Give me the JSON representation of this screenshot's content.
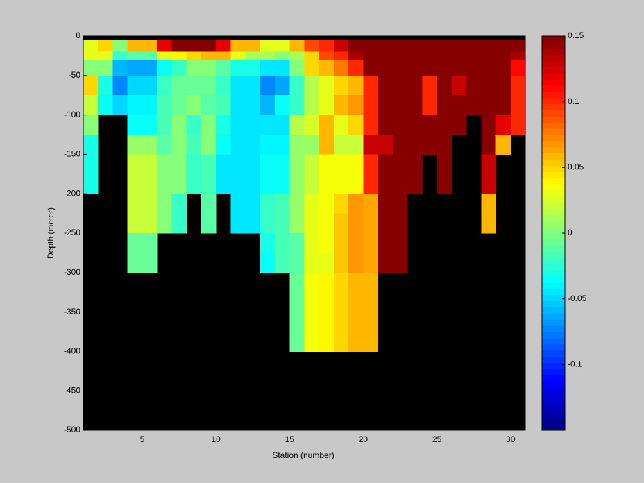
{
  "chart_data": {
    "type": "heatmap",
    "xlabel": "Station (number)",
    "ylabel": "Depth (meter)",
    "xbins": [
      1,
      2,
      3,
      4,
      5,
      6,
      7,
      8,
      9,
      10,
      11,
      12,
      13,
      14,
      15,
      16,
      17,
      18,
      19,
      20,
      21,
      22,
      23,
      24,
      25,
      26,
      27,
      28,
      29,
      30,
      31
    ],
    "ybins": [
      0,
      -5,
      -20,
      -30,
      -50,
      -75,
      -100,
      -125,
      -150,
      -175,
      -200,
      -225,
      -250,
      -275,
      -300,
      -325,
      -350,
      -375,
      -400
    ],
    "z": [
      [
        null,
        null,
        null,
        null,
        null,
        null,
        null,
        null,
        null,
        null,
        null,
        null,
        null,
        null,
        null,
        null,
        null,
        null,
        null,
        null,
        null,
        null,
        null,
        null,
        null,
        null,
        null,
        null,
        null,
        null
      ],
      [
        0.03,
        0.05,
        0,
        0.06,
        0.06,
        0.12,
        0.15,
        0.15,
        0.15,
        0.12,
        0.06,
        0.06,
        0.03,
        0.03,
        0.06,
        0.09,
        0.1,
        0.13,
        0.15,
        0.15,
        0.15,
        0.15,
        0.15,
        0.15,
        0.15,
        0.15,
        0.15,
        0.15,
        0.15,
        0.15
      ],
      [
        0.03,
        0.03,
        -0.02,
        -0.01,
        -0.01,
        0.03,
        0.04,
        0.05,
        0.06,
        0.06,
        0.03,
        0.01,
        0.01,
        0,
        0.01,
        0.05,
        0.09,
        0.1,
        0.14,
        0.15,
        0.15,
        0.15,
        0.15,
        0.15,
        0.15,
        0.15,
        0.15,
        0.15,
        0.15,
        0.14
      ],
      [
        0,
        0,
        -0.06,
        -0.065,
        -0.065,
        -0.035,
        -0.02,
        0,
        0,
        -0.01,
        -0.03,
        -0.03,
        -0.045,
        -0.045,
        0,
        0.05,
        0.06,
        0.075,
        0.1,
        0.15,
        0.15,
        0.15,
        0.15,
        0.15,
        0.15,
        0.15,
        0.15,
        0.15,
        0.15,
        0.11
      ],
      [
        0.05,
        -0.03,
        -0.075,
        -0.05,
        -0.05,
        -0.02,
        -0.005,
        -0.005,
        -0.005,
        -0.02,
        -0.045,
        -0.045,
        -0.075,
        -0.065,
        -0.02,
        0.015,
        0.03,
        0.05,
        0.06,
        0.1,
        0.15,
        0.15,
        0.15,
        0.1,
        0.15,
        0.13,
        0.15,
        0.15,
        0.15,
        0.1
      ],
      [
        0.02,
        -0.035,
        -0.05,
        -0.04,
        -0.04,
        -0.015,
        -0.005,
        0,
        -0.01,
        -0.015,
        -0.045,
        -0.045,
        -0.06,
        -0.035,
        -0.02,
        0.015,
        0.03,
        0.06,
        0.07,
        0.1,
        0.15,
        0.15,
        0.15,
        0.1,
        0.15,
        0.15,
        0.15,
        0.15,
        0.15,
        0.1
      ],
      [
        0,
        null,
        null,
        -0.035,
        -0.035,
        -0.015,
        0,
        -0.02,
        0,
        -0.03,
        -0.045,
        -0.045,
        -0.045,
        -0.045,
        0.015,
        0.025,
        0.06,
        0.03,
        0.05,
        0.1,
        0.15,
        0.15,
        0.15,
        0.15,
        0.15,
        0.15,
        null,
        0.15,
        0.12,
        0.1
      ],
      [
        -0.03,
        null,
        null,
        0.005,
        0.005,
        -0.01,
        0,
        -0.015,
        0,
        -0.035,
        -0.045,
        -0.045,
        -0.04,
        -0.04,
        0.005,
        0.005,
        0.06,
        0.02,
        0.02,
        0.13,
        0.13,
        0.15,
        0.15,
        0.15,
        0.15,
        null,
        null,
        0.15,
        0.06,
        null
      ],
      [
        -0.03,
        null,
        null,
        0.02,
        0.02,
        0,
        0,
        -0.02,
        -0.015,
        -0.045,
        -0.045,
        -0.045,
        -0.035,
        -0.035,
        0.005,
        0.02,
        0.035,
        0.035,
        0.035,
        0.1,
        0.15,
        0.15,
        0.15,
        null,
        0.15,
        null,
        null,
        0.13,
        null,
        null
      ],
      [
        -0.03,
        null,
        null,
        0.02,
        0.02,
        0,
        0,
        -0.02,
        -0.015,
        -0.045,
        -0.045,
        -0.045,
        -0.035,
        -0.035,
        0.005,
        0.02,
        0.035,
        0.035,
        0.035,
        0.1,
        0.15,
        0.15,
        0.15,
        null,
        0.15,
        null,
        null,
        0.13,
        null,
        null
      ],
      [
        null,
        null,
        null,
        0.02,
        0.02,
        0,
        -0.02,
        null,
        -0.01,
        null,
        -0.045,
        -0.045,
        -0.02,
        -0.015,
        0.005,
        0.03,
        0.035,
        0.05,
        0.07,
        0.065,
        0.15,
        0.15,
        null,
        null,
        null,
        null,
        null,
        0.06,
        null,
        null
      ],
      [
        null,
        null,
        null,
        0.02,
        0.02,
        0,
        -0.02,
        null,
        -0.01,
        null,
        -0.045,
        -0.045,
        -0.02,
        -0.015,
        0.005,
        0.03,
        0.035,
        0.055,
        0.07,
        0.065,
        0.15,
        0.15,
        null,
        null,
        null,
        null,
        null,
        0.06,
        null,
        null
      ],
      [
        null,
        null,
        null,
        -0.005,
        -0.005,
        null,
        null,
        null,
        null,
        null,
        null,
        null,
        -0.03,
        -0.015,
        -0.01,
        0.03,
        0.035,
        0.055,
        0.07,
        0.065,
        0.15,
        0.15,
        null,
        null,
        null,
        null,
        null,
        null,
        null,
        null
      ],
      [
        null,
        null,
        null,
        -0.005,
        -0.005,
        null,
        null,
        null,
        null,
        null,
        null,
        null,
        -0.035,
        -0.015,
        -0.01,
        0.03,
        0.03,
        0.055,
        0.07,
        0.065,
        0.15,
        0.15,
        null,
        null,
        null,
        null,
        null,
        null,
        null,
        null
      ],
      [
        null,
        null,
        null,
        null,
        null,
        null,
        null,
        null,
        null,
        null,
        null,
        null,
        null,
        null,
        -0.005,
        0.035,
        0.04,
        0.05,
        0.06,
        0.06,
        null,
        null,
        null,
        null,
        null,
        null,
        null,
        null,
        null,
        null
      ],
      [
        null,
        null,
        null,
        null,
        null,
        null,
        null,
        null,
        null,
        null,
        null,
        null,
        null,
        null,
        -0.005,
        0.035,
        0.04,
        0.05,
        0.06,
        0.06,
        null,
        null,
        null,
        null,
        null,
        null,
        null,
        null,
        null,
        null
      ],
      [
        null,
        null,
        null,
        null,
        null,
        null,
        null,
        null,
        null,
        null,
        null,
        null,
        null,
        null,
        -0.005,
        0.035,
        0.04,
        0.05,
        0.06,
        0.06,
        null,
        null,
        null,
        null,
        null,
        null,
        null,
        null,
        null,
        null
      ],
      [
        null,
        null,
        null,
        null,
        null,
        null,
        null,
        null,
        null,
        null,
        null,
        null,
        null,
        null,
        -0.005,
        0.035,
        0.04,
        0.05,
        0.06,
        0.06,
        null,
        null,
        null,
        null,
        null,
        null,
        null,
        null,
        null,
        null
      ]
    ],
    "xlim": [
      1,
      31
    ],
    "xticks": [
      5,
      10,
      15,
      20,
      25,
      30
    ],
    "ylim": [
      -500,
      0
    ],
    "yticks": [
      -500,
      -450,
      -400,
      -350,
      -300,
      -250,
      -200,
      -150,
      -100,
      -50,
      0
    ],
    "colormap": "jet",
    "clim": [
      -0.15,
      0.15
    ],
    "cticks": [
      -0.1,
      -0.05,
      0,
      0.05,
      0.1,
      0.15
    ],
    "missing_color": "#000000"
  }
}
